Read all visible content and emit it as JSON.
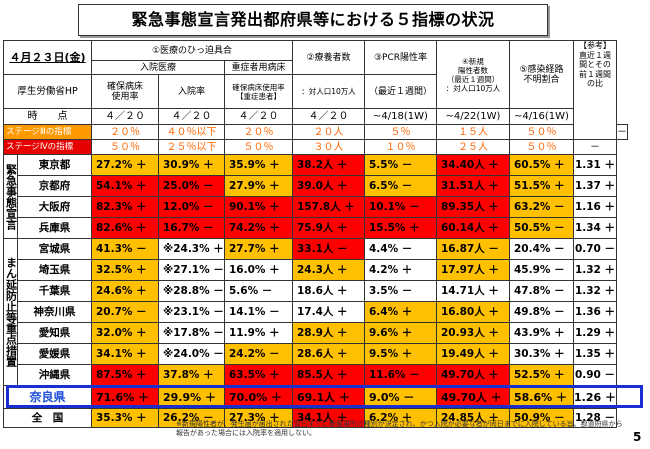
{
  "title": "緊急事態宣言発出都府県等における５指標の状況",
  "header": {
    "date": "４月２３日(金)",
    "ministry": "厚生労働省HP",
    "medical": "①医療のひっ迫具合",
    "inpatient": "入院医療",
    "severe": "重症者用病床",
    "bed_rate": "確保病床\n使用率",
    "hosp_rate": "入院率",
    "severe_rate": "確保病床使用率\n【重症患者】",
    "patients": "②療養者数",
    "patients_sub": "：対人口10万人",
    "pcr": "③PCR陽性率",
    "pcr_sub": "（最近１週間）",
    "new_cases": "④新規\n陽性者数\n（最近１週間）\n：対人口10万人",
    "unknown": "⑤感染経路\n不明割合",
    "ref": "【参考】\n直近１週\n間とその\n前１週間\nの比"
  },
  "time_row": {
    "label": "時　　点",
    "values": [
      "４／２０",
      "４／２０",
      "４／２０",
      "４／２０",
      "~4/18(1W)",
      "~4/22(1W)",
      "~4/16(1W)",
      ""
    ]
  },
  "stage3": {
    "label": "ステージⅢの指標",
    "values": [
      "２０％",
      "４０％以下",
      "２０％",
      "２０人",
      "５％",
      "１５人",
      "５０％",
      "－"
    ]
  },
  "stage4": {
    "label": "ステージⅣの指標",
    "values": [
      "５０％",
      "２５％以下",
      "５０％",
      "３０人",
      "１０％",
      "２５人",
      "５０％",
      "－"
    ]
  },
  "groups": {
    "emergency": "緊急事態宣言",
    "priority": "まん延防止等重点措置"
  },
  "rows": [
    {
      "pref": "東京都",
      "cells": [
        "27.2% ＋",
        "30.9% ＋",
        "35.9% ＋",
        "38.2人 ＋",
        "5.5% －",
        "34.40人 ＋",
        "60.5% ＋",
        "1.31 ＋"
      ],
      "fill": [
        "o",
        "o",
        "o",
        "r",
        "o",
        "r",
        "o",
        "w"
      ]
    },
    {
      "pref": "京都府",
      "cells": [
        "54.1% ＋",
        "25.0% －",
        "27.9% ＋",
        "39.0人 ＋",
        "6.5% －",
        "31.51人 ＋",
        "51.5% ＋",
        "1.37 ＋"
      ],
      "fill": [
        "r",
        "r",
        "o",
        "r",
        "o",
        "r",
        "o",
        "w"
      ]
    },
    {
      "pref": "大阪府",
      "cells": [
        "82.3% ＋",
        "12.0% －",
        "90.1% ＋",
        "157.8人 ＋",
        "10.1% －",
        "89.35人 ＋",
        "63.2% －",
        "1.16 ＋"
      ],
      "fill": [
        "r",
        "r",
        "r",
        "r",
        "r",
        "r",
        "o",
        "w"
      ]
    },
    {
      "pref": "兵庫県",
      "cells": [
        "82.6% ＋",
        "16.7% －",
        "74.2% ＋",
        "75.9人 ＋",
        "15.5% ＋",
        "60.14人 ＋",
        "50.5% －",
        "1.34 ＋"
      ],
      "fill": [
        "r",
        "r",
        "r",
        "r",
        "r",
        "r",
        "o",
        "w"
      ]
    },
    {
      "pref": "宮城県",
      "cells": [
        "41.3% －",
        "※24.3% ＋",
        "27.7% ＋",
        "33.1人 －",
        "4.4% －",
        "16.87人 －",
        "20.4% －",
        "0.70 －"
      ],
      "fill": [
        "o",
        "w",
        "o",
        "r",
        "w",
        "o",
        "w",
        "w"
      ]
    },
    {
      "pref": "埼玉県",
      "cells": [
        "32.5% ＋",
        "※27.1% －",
        "16.0% ＋",
        "24.3人 ＋",
        "4.2% ＋",
        "17.97人 ＋",
        "45.9% －",
        "1.32 ＋"
      ],
      "fill": [
        "o",
        "w",
        "w",
        "o",
        "w",
        "o",
        "w",
        "w"
      ]
    },
    {
      "pref": "千葉県",
      "cells": [
        "24.6% ＋",
        "※28.8% －",
        "5.6% －",
        "18.6人 ＋",
        "3.5% －",
        "14.71人 ＋",
        "47.8% －",
        "1.32 ＋"
      ],
      "fill": [
        "o",
        "w",
        "w",
        "w",
        "w",
        "w",
        "w",
        "w"
      ]
    },
    {
      "pref": "神奈川県",
      "cells": [
        "20.7% －",
        "※23.1% －",
        "14.1% －",
        "17.4人 ＋",
        "6.4% ＋",
        "16.80人 ＋",
        "49.8% －",
        "1.36 ＋"
      ],
      "fill": [
        "o",
        "w",
        "w",
        "w",
        "o",
        "o",
        "w",
        "w"
      ]
    },
    {
      "pref": "愛知県",
      "cells": [
        "32.0% ＋",
        "※17.8% －",
        "11.9% ＋",
        "28.9人 ＋",
        "9.6% ＋",
        "20.93人 ＋",
        "43.9% ＋",
        "1.29 ＋"
      ],
      "fill": [
        "o",
        "w",
        "w",
        "o",
        "o",
        "o",
        "w",
        "w"
      ]
    },
    {
      "pref": "愛媛県",
      "cells": [
        "34.1% ＋",
        "※24.0% －",
        "24.2% －",
        "28.6人 ＋",
        "9.5% ＋",
        "19.49人 ＋",
        "30.3% ＋",
        "1.35 ＋"
      ],
      "fill": [
        "o",
        "w",
        "o",
        "o",
        "o",
        "o",
        "w",
        "w"
      ]
    },
    {
      "pref": "沖縄県",
      "cells": [
        "87.5% ＋",
        "37.8% ＋",
        "63.5% ＋",
        "85.5人 ＋",
        "11.6% －",
        "49.70人 ＋",
        "52.5% ＋",
        "0.90 －"
      ],
      "fill": [
        "r",
        "o",
        "r",
        "r",
        "r",
        "r",
        "o",
        "w"
      ]
    }
  ],
  "nara": {
    "pref": "奈良県",
    "cells": [
      "71.6% ＋",
      "29.9% ＋",
      "70.0% ＋",
      "69.1人 ＋",
      "9.0% －",
      "49.70人 ＋",
      "58.6% ＋",
      "1.26 ＋"
    ],
    "fill": [
      "r",
      "o",
      "r",
      "r",
      "o",
      "r",
      "o",
      "w"
    ]
  },
  "national": {
    "pref": "全　国",
    "cells": [
      "35.3% ＋",
      "26.2% －",
      "27.3% ＋",
      "34.1人 ＋",
      "6.2% ＋",
      "24.85人 ＋",
      "50.9% －",
      "1.28 －"
    ],
    "fill": [
      "o",
      "o",
      "o",
      "r",
      "o",
      "o",
      "o",
      "w"
    ]
  },
  "footnote": "※新規陽性者が、発生届が届出された翌日までに療養場所の種別が決定され、かつ入院が必要な者が同日までに入院している旨、都道府県から報告があった場合には入院率を適用しない。",
  "page_number": "5",
  "colors": {
    "stage4": "#ff0000",
    "stage3": "#ffc000",
    "nara_border": "#1a2fd0"
  }
}
